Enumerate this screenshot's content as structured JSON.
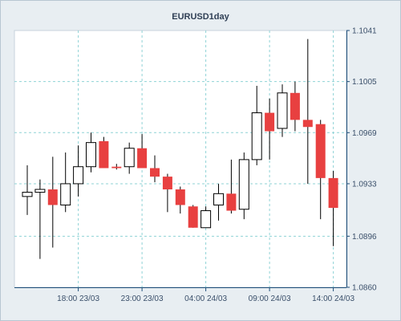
{
  "chart_data": {
    "type": "candlestick",
    "title": "EURUSD1day",
    "y_ticks": [
      1.1041,
      1.1005,
      1.0969,
      1.0933,
      1.0896,
      1.086
    ],
    "y_tick_labels": [
      "1.1041",
      "1.1005",
      "1.0969",
      "1.0933",
      "1.0896",
      "1.0860"
    ],
    "ylim": [
      1.086,
      1.1041
    ],
    "x_tick_labels": [
      "18:00 23/03",
      "23:00 23/03",
      "04:00 24/03",
      "09:00 24/03",
      "14:00 24/03"
    ],
    "x_tick_indices": [
      4,
      9,
      14,
      19,
      24
    ],
    "grid": true,
    "colors": {
      "bullish": "#ffffff",
      "bearish": "#e84040",
      "grid": "#8fd3d6",
      "axis": "#1f4e79",
      "plot_bg": "#ffffff",
      "outer_bg": "#e8eef2"
    },
    "candles": [
      {
        "open": 1.0924,
        "high": 1.0946,
        "low": 1.0911,
        "close": 1.0927
      },
      {
        "open": 1.0927,
        "high": 1.0936,
        "low": 1.088,
        "close": 1.0929
      },
      {
        "open": 1.0929,
        "high": 1.0952,
        "low": 1.0888,
        "close": 1.0918
      },
      {
        "open": 1.0918,
        "high": 1.0955,
        "low": 1.0913,
        "close": 1.0933
      },
      {
        "open": 1.0933,
        "high": 1.096,
        "low": 1.0924,
        "close": 1.0945
      },
      {
        "open": 1.0945,
        "high": 1.0969,
        "low": 1.0941,
        "close": 1.0962
      },
      {
        "open": 1.0963,
        "high": 1.0966,
        "low": 1.0944,
        "close": 1.0944
      },
      {
        "open": 1.0945,
        "high": 1.0947,
        "low": 1.0943,
        "close": 1.0944
      },
      {
        "open": 1.0945,
        "high": 1.0962,
        "low": 1.094,
        "close": 1.0958
      },
      {
        "open": 1.0958,
        "high": 1.0968,
        "low": 1.0944,
        "close": 1.0944
      },
      {
        "open": 1.0944,
        "high": 1.0953,
        "low": 1.0934,
        "close": 1.0938
      },
      {
        "open": 1.0938,
        "high": 1.094,
        "low": 1.0913,
        "close": 1.0929
      },
      {
        "open": 1.0929,
        "high": 1.0931,
        "low": 1.0912,
        "close": 1.0918
      },
      {
        "open": 1.0917,
        "high": 1.0918,
        "low": 1.0902,
        "close": 1.0902
      },
      {
        "open": 1.0902,
        "high": 1.0917,
        "low": 1.0902,
        "close": 1.0914
      },
      {
        "open": 1.0918,
        "high": 1.0933,
        "low": 1.0907,
        "close": 1.0926
      },
      {
        "open": 1.0926,
        "high": 1.095,
        "low": 1.0912,
        "close": 1.0914
      },
      {
        "open": 1.0915,
        "high": 1.0955,
        "low": 1.0908,
        "close": 1.095
      },
      {
        "open": 1.095,
        "high": 1.1002,
        "low": 1.0946,
        "close": 1.0983
      },
      {
        "open": 1.0983,
        "high": 1.0993,
        "low": 1.095,
        "close": 1.097
      },
      {
        "open": 1.0972,
        "high": 1.1003,
        "low": 1.0966,
        "close": 1.0997
      },
      {
        "open": 1.0997,
        "high": 1.1005,
        "low": 1.097,
        "close": 1.0978
      },
      {
        "open": 1.0978,
        "high": 1.1035,
        "low": 1.0933,
        "close": 1.0973
      },
      {
        "open": 1.0975,
        "high": 1.0978,
        "low": 1.0908,
        "close": 1.0937
      },
      {
        "open": 1.0937,
        "high": 1.0942,
        "low": 1.0889,
        "close": 1.0916
      }
    ]
  }
}
